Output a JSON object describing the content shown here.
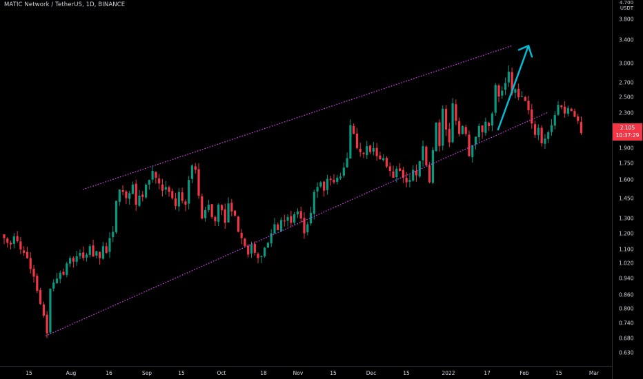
{
  "header": {
    "title": "MATIC Network / TetherUS, 1D, BINANCE"
  },
  "price_axis": {
    "top_value": "4.700",
    "unit": "USDT"
  },
  "current_price": {
    "value": "2.105",
    "countdown": "10:37:29",
    "color": "#f23645"
  },
  "colors": {
    "background": "#000000",
    "up": "#089981",
    "down": "#f23645",
    "channel": "#e040fb",
    "arrow": "#00bcd4",
    "text": "#d1d4dc"
  },
  "chart_data": {
    "type": "candlestick",
    "symbol": "MATIC Network / TetherUS",
    "interval": "1D",
    "exchange": "BINANCE",
    "y_scale": "log",
    "y_ticks": [
      "3.800",
      "3.400",
      "3.000",
      "2.700",
      "2.500",
      "2.300",
      "2.100",
      "1.900",
      "1.750",
      "1.600",
      "1.450",
      "1.300",
      "1.200",
      "1.100",
      "1.020",
      "0.940",
      "0.860",
      "0.800",
      "0.740",
      "0.680",
      "0.630"
    ],
    "x_ticks": [
      "15",
      "Aug",
      "16",
      "Sep",
      "15",
      "Oct",
      "18",
      "Nov",
      "15",
      "Dec",
      "15",
      "2022",
      "17",
      "Feb",
      "15",
      "Mar"
    ],
    "closes": [
      1.17,
      1.14,
      1.13,
      1.18,
      1.15,
      1.1,
      1.08,
      1.05,
      0.99,
      0.95,
      0.88,
      0.82,
      0.77,
      0.7,
      0.89,
      0.92,
      0.94,
      0.97,
      0.96,
      1.02,
      1.05,
      1.03,
      1.06,
      1.08,
      1.05,
      1.07,
      1.12,
      1.06,
      1.09,
      1.05,
      1.12,
      1.08,
      1.17,
      1.21,
      1.43,
      1.52,
      1.5,
      1.45,
      1.49,
      1.56,
      1.4,
      1.47,
      1.46,
      1.56,
      1.6,
      1.68,
      1.62,
      1.57,
      1.51,
      1.54,
      1.5,
      1.45,
      1.39,
      1.5,
      1.43,
      1.4,
      1.6,
      1.73,
      1.69,
      1.47,
      1.3,
      1.36,
      1.4,
      1.31,
      1.28,
      1.4,
      1.36,
      1.27,
      1.41,
      1.35,
      1.32,
      1.21,
      1.17,
      1.12,
      1.07,
      1.13,
      1.08,
      1.05,
      1.06,
      1.11,
      1.14,
      1.2,
      1.26,
      1.22,
      1.29,
      1.28,
      1.31,
      1.27,
      1.33,
      1.35,
      1.3,
      1.2,
      1.26,
      1.34,
      1.5,
      1.54,
      1.58,
      1.51,
      1.61,
      1.6,
      1.58,
      1.62,
      1.63,
      1.71,
      1.8,
      2.15,
      2.05,
      1.9,
      1.86,
      1.84,
      1.92,
      1.86,
      1.9,
      1.82,
      1.79,
      1.8,
      1.72,
      1.68,
      1.62,
      1.7,
      1.68,
      1.62,
      1.58,
      1.6,
      1.69,
      1.64,
      1.77,
      1.92,
      1.73,
      1.58,
      1.88,
      2.18,
      1.92,
      2.35,
      2.1,
      1.96,
      2.42,
      2.2,
      2.05,
      2.14,
      2.05,
      1.82,
      1.93,
      2.02,
      2.14,
      2.07,
      2.19,
      2.14,
      2.29,
      2.67,
      2.51,
      2.59,
      2.7,
      2.87,
      2.55,
      2.61,
      2.5,
      2.51,
      2.45,
      2.33,
      2.17,
      2.04,
      2.12,
      1.95,
      2.0,
      2.07,
      2.15,
      2.27,
      2.4,
      2.37,
      2.29,
      2.36,
      2.32,
      2.25,
      2.2,
      2.06
    ],
    "channel_upper": {
      "from": "Jul 31",
      "from_value": 1.52,
      "to": "Feb 01",
      "to_value": 3.3
    },
    "channel_lower": {
      "from": "Jul 20",
      "from_value": 0.69,
      "to": "Feb 10",
      "to_value": 2.3
    },
    "arrow": {
      "from_value": 2.1,
      "to_value": 3.3,
      "direction": "up"
    }
  }
}
